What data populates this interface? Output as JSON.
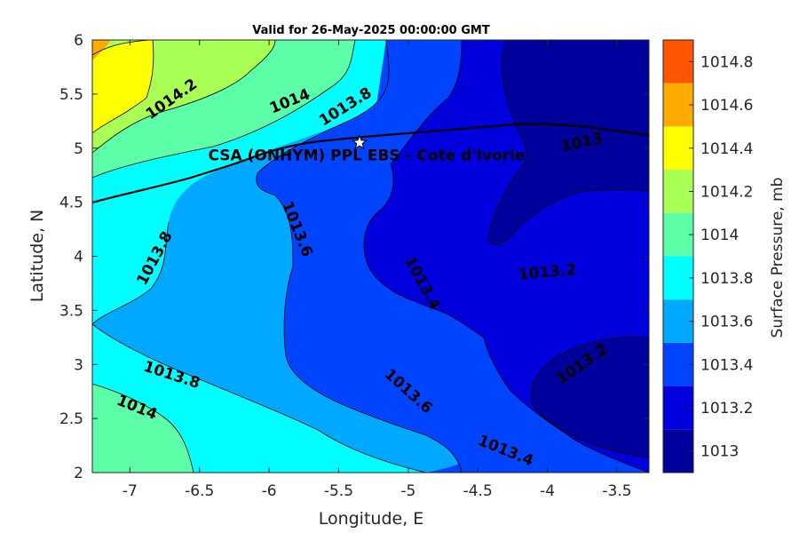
{
  "title": "Valid for 26-May-2025 00:00:00 GMT",
  "xlabel": "Longitude, E",
  "ylabel": "Latitude, N",
  "colorbar": {
    "label": "Surface Pressure, mb",
    "levels": [
      "1013",
      "1013.2",
      "1013.4",
      "1013.6",
      "1013.8",
      "1014",
      "1014.2",
      "1014.4",
      "1014.6",
      "1014.8"
    ],
    "colors": [
      "#00009c",
      "#0000dd",
      "#0044ff",
      "#00a8ff",
      "#00ffff",
      "#5cffa8",
      "#aaff55",
      "#ffff00",
      "#ffaa00",
      "#ff5500"
    ]
  },
  "site": {
    "label": "CSA (ONHYM) PPL EBS  - Cote d'Ivorie",
    "marker": "star-icon",
    "lon": -5.35,
    "lat": 5.05
  },
  "chart_data": {
    "type": "contour",
    "title": "Valid for 26-May-2025 00:00:00 GMT",
    "xlabel": "Longitude, E",
    "ylabel": "Latitude, N",
    "xlim": [
      -7.27,
      -3.27
    ],
    "ylim": [
      2,
      6
    ],
    "xticks": [
      "-7",
      "-6.5",
      "-6",
      "-5.5",
      "-5",
      "-4.5",
      "-4",
      "-3.5"
    ],
    "yticks": [
      "2",
      "2.5",
      "3",
      "3.5",
      "4",
      "4.5",
      "5",
      "5.5",
      "6"
    ],
    "contour_labels": [
      {
        "text": "1014.2",
        "lon": -6.7,
        "lat": 5.45
      },
      {
        "text": "1014",
        "lon": -5.85,
        "lat": 5.43
      },
      {
        "text": "1013.8",
        "lon": -5.45,
        "lat": 5.38
      },
      {
        "text": "1013",
        "lon": -3.75,
        "lat": 5.05
      },
      {
        "text": "1013.6",
        "lon": -5.8,
        "lat": 4.25
      },
      {
        "text": "1013.8",
        "lon": -6.82,
        "lat": 3.98
      },
      {
        "text": "1013.4",
        "lon": -4.9,
        "lat": 3.75
      },
      {
        "text": "1013.2",
        "lon": -4.0,
        "lat": 3.85
      },
      {
        "text": "1013.8",
        "lon": -6.7,
        "lat": 2.9
      },
      {
        "text": "1014",
        "lon": -6.95,
        "lat": 2.6
      },
      {
        "text": "1013.6",
        "lon": -5.0,
        "lat": 2.75
      },
      {
        "text": "1013.2",
        "lon": -3.75,
        "lat": 3.0
      },
      {
        "text": "1013.4",
        "lon": -4.3,
        "lat": 2.2
      }
    ],
    "colorbar_range": [
      1013,
      1014.8
    ]
  }
}
